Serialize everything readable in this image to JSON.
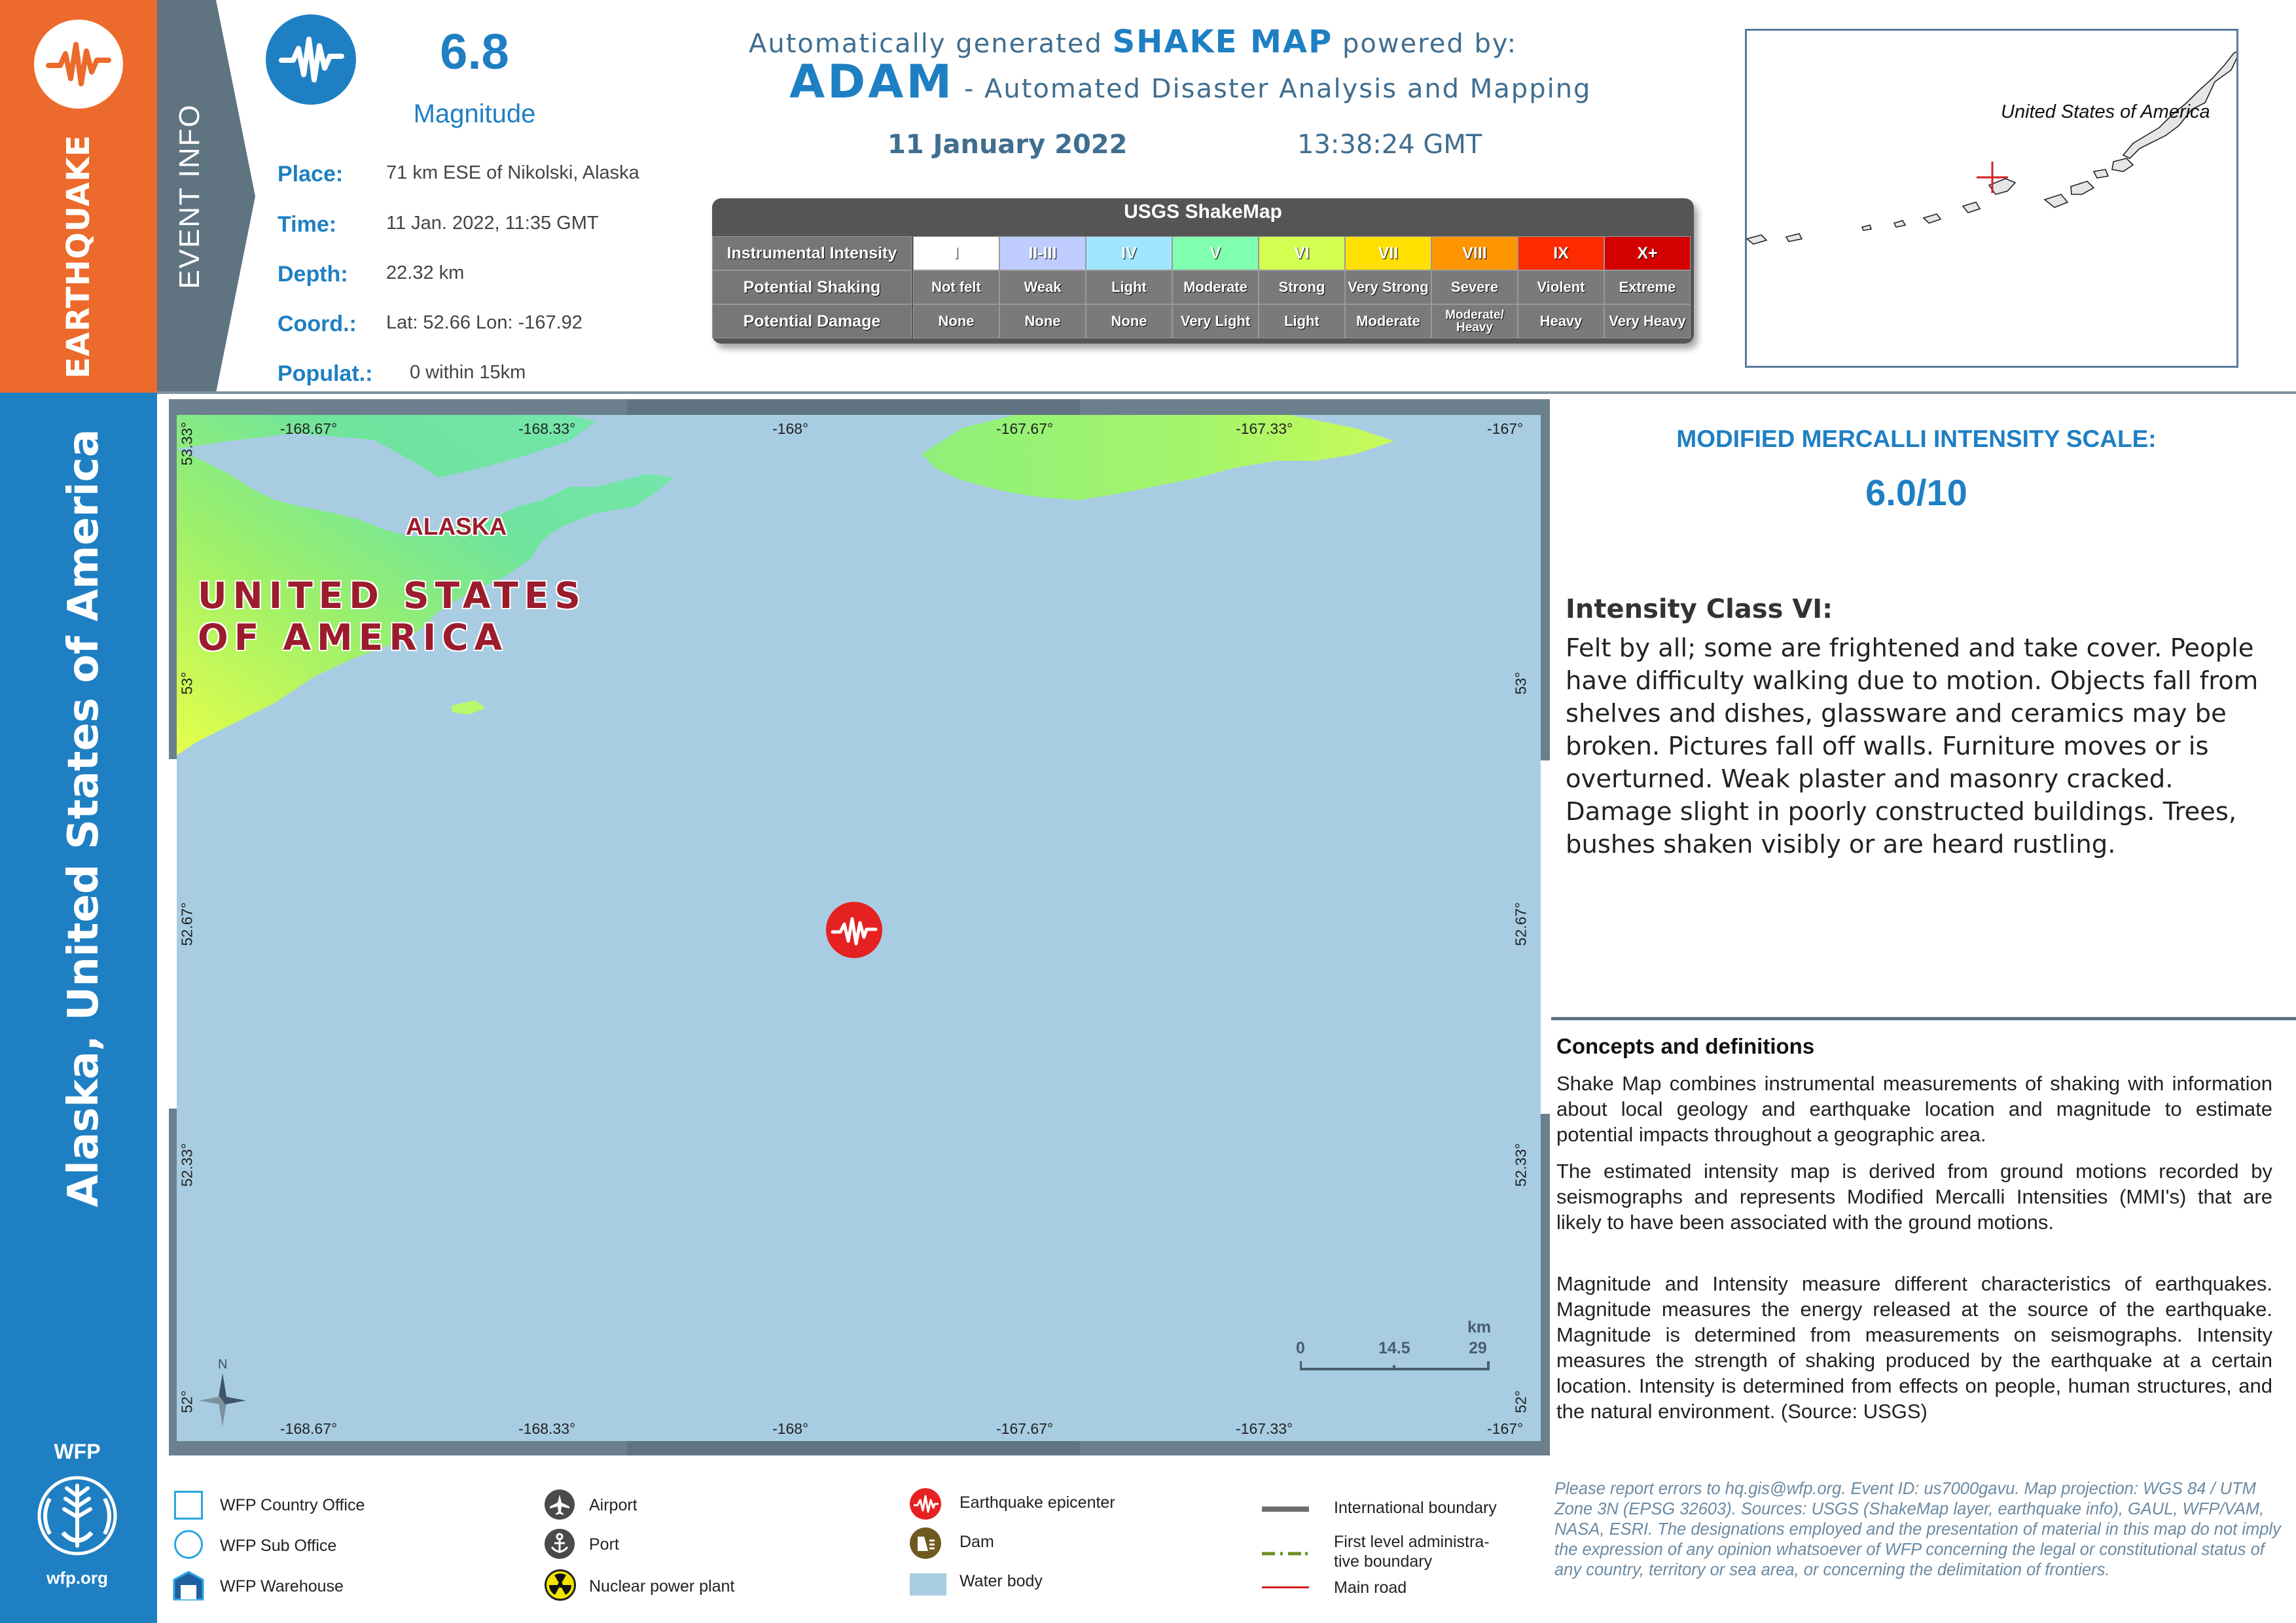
{
  "left_band": {
    "earthquake": "EARTHQUAKE",
    "country": "Alaska, United States of America"
  },
  "event_band": {
    "label": "EVENT INFO"
  },
  "event": {
    "magnitude": "6.8",
    "magnitude_label": "Magnitude",
    "place_label": "Place:",
    "place": "71 km ESE of Nikolski, Alaska",
    "time_label": "Time:",
    "time": "11 Jan. 2022, 11:35 GMT",
    "depth_label": "Depth:",
    "depth": "22.32 km",
    "coord_label": "Coord.:",
    "coord": "Lat: 52.66 Lon: -167.92",
    "pop_label": "Populat.:",
    "pop": "0 within 15km"
  },
  "title": {
    "line1_pre": "Automatically generated ",
    "line1_bold": "SHAKE MAP",
    "line1_post": " powered by:",
    "brand": "ADAM",
    "brand_sub": " - Automated Disaster Analysis and Mapping",
    "date": "11 January 2022",
    "time": "13:38:24 GMT"
  },
  "shakemap": {
    "title": "USGS ShakeMap",
    "row_labels": [
      "Instrumental Intensity",
      "Potential Shaking",
      "Potential Damage"
    ],
    "intensity": [
      "I",
      "II-III",
      "IV",
      "V",
      "VI",
      "VII",
      "VIII",
      "IX",
      "X+"
    ],
    "shaking": [
      "Not felt",
      "Weak",
      "Light",
      "Moderate",
      "Strong",
      "Very Strong",
      "Severe",
      "Violent",
      "Extreme"
    ],
    "damage": [
      "None",
      "None",
      "None",
      "Very Light",
      "Light",
      "Moderate",
      "Moderate/ Heavy",
      "Heavy",
      "Very Heavy"
    ],
    "colors": [
      "#ffffff",
      "#bfccff",
      "#a0e6ff",
      "#80ffb0",
      "#d2ff50",
      "#ffe000",
      "#ff9500",
      "#ff2a00",
      "#d40000"
    ]
  },
  "inset": {
    "label": "United States of America"
  },
  "map": {
    "country_label_1": "UNITED STATES",
    "country_label_2": "OF AMERICA",
    "region_label": "ALASKA",
    "lon_ticks": [
      "-168.67°",
      "-168.33°",
      "-168°",
      "-167.67°",
      "-167.33°",
      "-167°"
    ],
    "lat_ticks": [
      "53.33°",
      "53°",
      "52.67°",
      "52.33°",
      "52°"
    ],
    "scale": {
      "unit": "km",
      "ticks": [
        "0",
        "14.5",
        "29"
      ]
    },
    "north": "N"
  },
  "mmi": {
    "title": "MODIFIED MERCALLI INTENSITY SCALE:",
    "value": "6.0/10",
    "class_title": "Intensity Class VI:",
    "description": "Felt by all; some are frightened and take cover. People have difficulty walking due to motion. Objects fall from shelves and dishes, glassware and ceramics may be broken. Pictures fall off walls. Furniture moves or is overturned. Weak plaster and masonry cracked. Damage slight in poorly constructed buildings. Trees, bushes shaken visibly or are heard rustling."
  },
  "concepts": {
    "heading": "Concepts and definitions",
    "p1": "Shake Map combines instrumental measurements of shaking with information about local geology and earthquake location and magnitude to estimate potential impacts throughout a geographic area.",
    "p2": "The estimated intensity map is derived from ground motions recorded by seismographs and represents Modified Mercalli Intensities (MMI's) that are likely to have been associated with the ground motions.",
    "p3": "Magnitude and Intensity measure different characteristics of earthquakes. Magnitude measures the energy released at the source of the earthquake. Magnitude is determined from measurements on seismographs. Intensity measures the strength of shaking produced by the earthquake at a certain location. Intensity is determined from effects on people, human structures, and the natural environment. (Source: USGS)"
  },
  "legend": {
    "country_office": "WFP Country Office",
    "sub_office": "WFP Sub Office",
    "warehouse": "WFP Warehouse",
    "airport": "Airport",
    "port": "Port",
    "nuclear": "Nuclear power plant",
    "epicenter": "Earthquake epicenter",
    "dam": "Dam",
    "water": "Water body",
    "intl_boundary": "International boundary",
    "admin_boundary_1": "First level administra-",
    "admin_boundary_2": "tive boundary",
    "main_road": "Main road"
  },
  "wfp": {
    "name": "WFP",
    "url": "wfp.org"
  },
  "disclaimer": "Please report errors to hq.gis@wfp.org. Event ID: us7000gavu. Map projection: WGS 84 / UTM Zone 3N (EPSG 32603). Sources: USGS (ShakeMap layer, earthquake info), GAUL, WFP/VAM, NASA, ESRI. The designations employed and the presentation of material in this map do not imply the expression of any opinion whatsoever of WFP concerning the legal or constitutional status of any country, territory or sea area, or concerning the delimitation of frontiers."
}
